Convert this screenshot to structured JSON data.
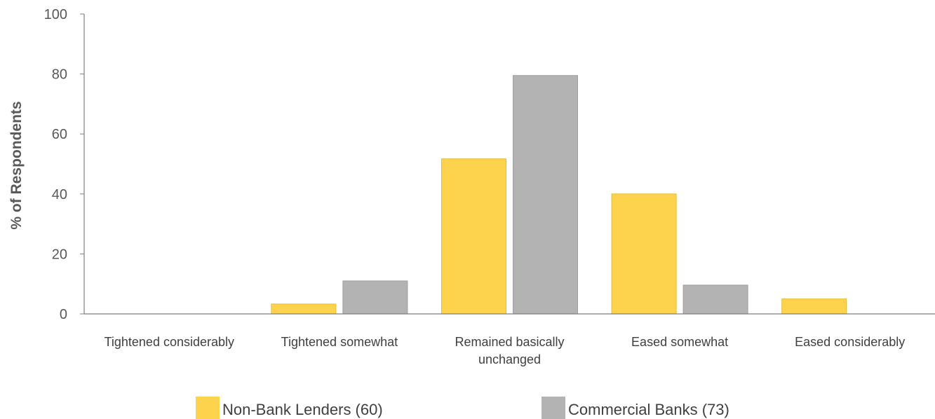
{
  "chart_data": {
    "type": "bar",
    "categories": [
      [
        "Tightened considerably"
      ],
      [
        "Tightened somewhat"
      ],
      [
        "Remained basically",
        "unchanged"
      ],
      [
        "Eased somewhat"
      ],
      [
        "Eased considerably"
      ]
    ],
    "series": [
      {
        "name": "Non-Bank Lenders (60)",
        "color": "#fdd24c",
        "values": [
          0,
          3.3,
          51.7,
          40.0,
          5.0
        ]
      },
      {
        "name": "Commercial Banks (73)",
        "color": "#b3b3b3",
        "values": [
          0,
          11.0,
          79.5,
          9.6,
          0
        ]
      }
    ],
    "ylabel": "% of Respondents",
    "yticks": [
      0,
      20,
      40,
      60,
      80,
      100
    ],
    "ylim": [
      0,
      100
    ],
    "grid": false,
    "legend": "bottom"
  }
}
